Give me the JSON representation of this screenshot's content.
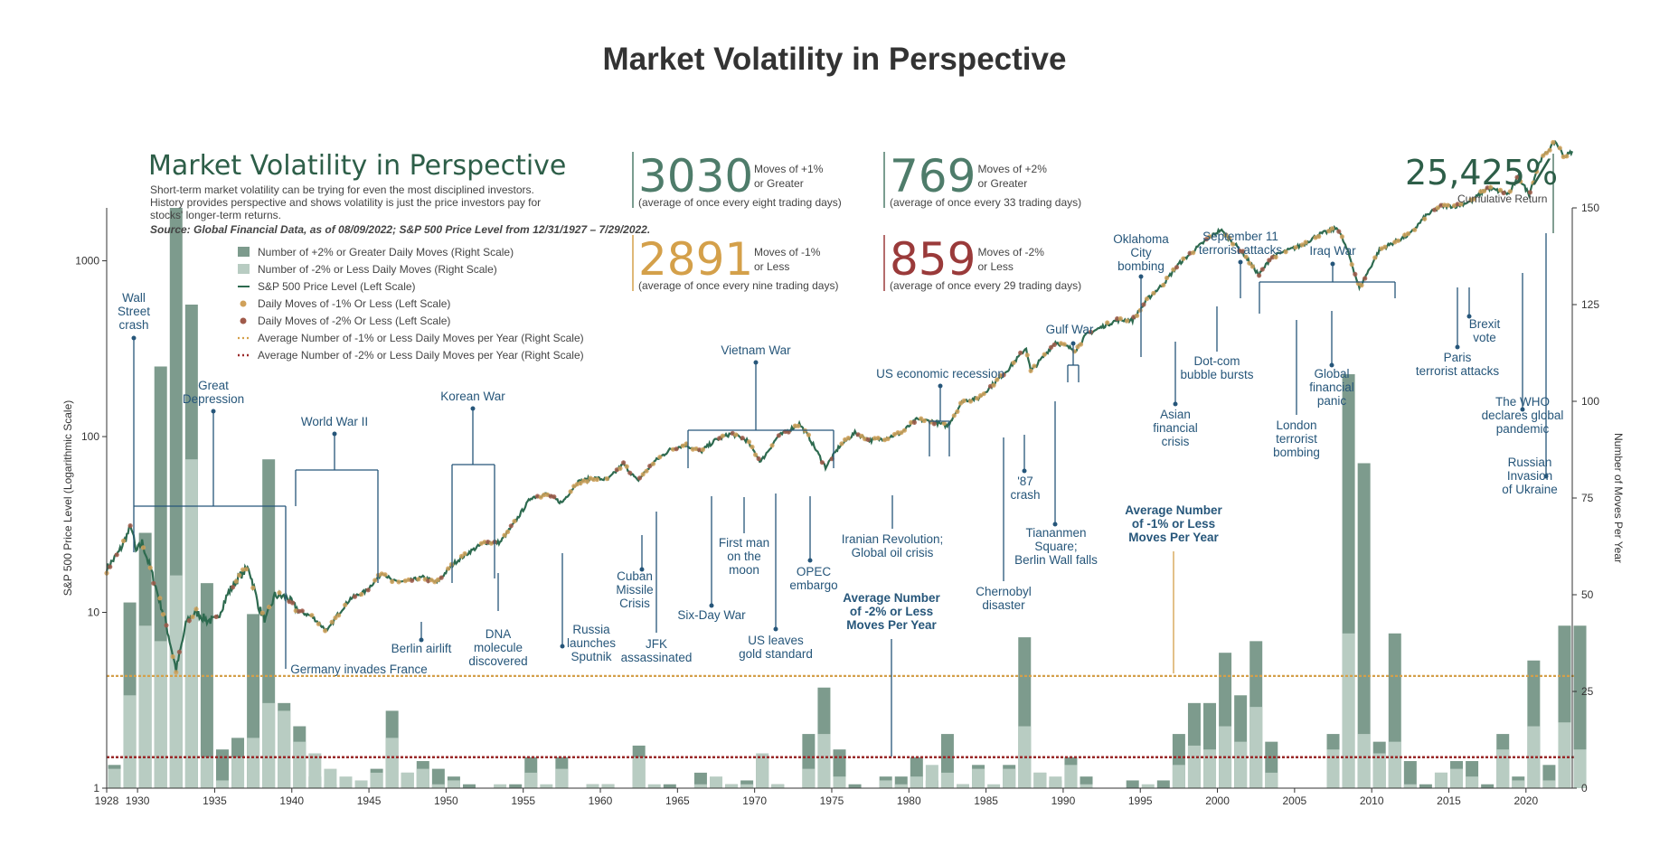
{
  "page_title": "Market Volatility in Perspective",
  "colors": {
    "bar_up": "#7d9b8d",
    "bar_down": "#b8ccc2",
    "line": "#2d6a4f",
    "dot_down1": "#d0a15a",
    "dot_down2": "#a05a4a",
    "avg1": "#d4a04a",
    "avg2": "#9a2a2a",
    "annotation": "#26567a",
    "green_num": "#4e7c6a",
    "gold_num": "#d4a04a",
    "red_num": "#9a3a3a"
  },
  "infographic": {
    "title": "Market Volatility in Perspective",
    "intro": [
      "Short-term market volatility can be trying for even the most disciplined investors.",
      "History provides perspective and shows volatility is just the price investors pay for",
      "stocks' longer-term returns."
    ],
    "source": "Source: Global Financial Data, as of 08/09/2022; S&P 500 Price Level from 12/31/1927 – 7/29/2022.",
    "stats": [
      {
        "number": "3030",
        "label1": "Moves of +1%",
        "label2": "or Greater",
        "sub": "(average of once every eight trading days)"
      },
      {
        "number": "769",
        "label1": "Moves of +2%",
        "label2": "or Greater",
        "sub": "(average of once every 33 trading days)"
      },
      {
        "number": "2891",
        "label1": "Moves of -1%",
        "label2": "or Less",
        "sub": "(average of once every nine trading days)"
      },
      {
        "number": "859",
        "label1": "Moves of -2%",
        "label2": "or Less",
        "sub": "(average of once every 29 trading days)"
      }
    ],
    "cumulative": {
      "value": "25,425%",
      "label": "Cumulative Return"
    }
  },
  "legend": [
    "Number of +2% or Greater Daily Moves (Right Scale)",
    "Number of -2% or Less Daily Moves (Right Scale)",
    "S&P 500 Price Level (Left Scale)",
    "Daily Moves of -1% Or Less (Left Scale)",
    "Daily Moves of -2% Or Less (Left Scale)",
    "Average Number of -1% or Less Daily Moves per Year (Right Scale)",
    "Average Number of -2% or Less Daily Moves per Year (Right Scale)"
  ],
  "chart_data": {
    "type": "bar+line",
    "title": "Market Volatility in Perspective",
    "ylabel_left": "S&P 500 Price Level (Logarithmic Scale)",
    "ylabel_right": "Number of Moves Per Year",
    "x_range": [
      1928,
      2023
    ],
    "ylim_left": [
      1,
      2000
    ],
    "ylim_right": [
      0,
      150
    ],
    "x_ticks": [
      1928,
      1930,
      1935,
      1940,
      1945,
      1950,
      1955,
      1960,
      1965,
      1970,
      1975,
      1980,
      1985,
      1990,
      1995,
      2000,
      2005,
      2010,
      2015,
      2020
    ],
    "left_ticks": [
      {
        "v": 1,
        "label": "1"
      },
      {
        "v": 10,
        "label": "10"
      },
      {
        "v": 100,
        "label": "100"
      },
      {
        "v": 1000,
        "label": "1000"
      }
    ],
    "right_ticks": [
      0,
      25,
      50,
      75,
      100,
      125,
      150
    ],
    "avg_down1": 29,
    "avg_down2": 8,
    "bars": {
      "years": [
        1928,
        1929,
        1930,
        1931,
        1932,
        1933,
        1934,
        1935,
        1936,
        1937,
        1938,
        1939,
        1940,
        1941,
        1942,
        1943,
        1944,
        1945,
        1946,
        1947,
        1948,
        1949,
        1950,
        1951,
        1952,
        1953,
        1954,
        1955,
        1956,
        1957,
        1958,
        1959,
        1960,
        1961,
        1962,
        1963,
        1964,
        1965,
        1966,
        1967,
        1968,
        1969,
        1970,
        1971,
        1972,
        1973,
        1974,
        1975,
        1976,
        1977,
        1978,
        1979,
        1980,
        1981,
        1982,
        1983,
        1984,
        1985,
        1986,
        1987,
        1988,
        1989,
        1990,
        1991,
        1992,
        1993,
        1994,
        1995,
        1996,
        1997,
        1998,
        1999,
        2000,
        2001,
        2002,
        2003,
        2004,
        2005,
        2006,
        2007,
        2008,
        2009,
        2010,
        2011,
        2012,
        2013,
        2014,
        2015,
        2016,
        2017,
        2018,
        2019,
        2020,
        2021,
        2022,
        2023
      ],
      "up2": [
        6,
        48,
        66,
        109,
        150,
        125,
        53,
        10,
        13,
        45,
        85,
        22,
        16,
        3,
        1,
        0,
        0,
        5,
        20,
        4,
        7,
        5,
        3,
        1,
        0,
        0,
        1,
        8,
        0,
        8,
        0,
        1,
        1,
        0,
        11,
        0,
        1,
        0,
        4,
        1,
        1,
        2,
        8,
        1,
        0,
        14,
        26,
        10,
        1,
        0,
        3,
        3,
        8,
        2,
        14,
        1,
        6,
        0,
        6,
        39,
        4,
        2,
        8,
        3,
        0,
        0,
        2,
        0,
        2,
        14,
        22,
        22,
        35,
        24,
        38,
        12,
        0,
        0,
        0,
        14,
        107,
        84,
        12,
        40,
        7,
        1,
        4,
        7,
        7,
        1,
        14,
        3,
        33,
        6,
        42,
        42
      ],
      "down2": [
        5,
        24,
        42,
        38,
        55,
        85,
        8,
        2,
        8,
        13,
        22,
        20,
        12,
        9,
        5,
        3,
        2,
        4,
        13,
        4,
        5,
        1,
        2,
        0,
        0,
        1,
        0,
        4,
        1,
        5,
        0,
        1,
        1,
        0,
        8,
        1,
        0,
        0,
        1,
        3,
        1,
        1,
        9,
        1,
        0,
        5,
        14,
        3,
        0,
        0,
        2,
        1,
        3,
        6,
        4,
        1,
        5,
        1,
        5,
        16,
        4,
        3,
        6,
        1,
        0,
        0,
        0,
        1,
        0,
        6,
        11,
        10,
        16,
        12,
        21,
        4,
        0,
        0,
        0,
        10,
        40,
        14,
        9,
        12,
        1,
        0,
        4,
        5,
        3,
        0,
        10,
        2,
        16,
        2,
        17,
        10
      ]
    },
    "price_points": [
      [
        1928.0,
        17.7
      ],
      [
        1928.8,
        22
      ],
      [
        1929.6,
        31
      ],
      [
        1929.9,
        22
      ],
      [
        1930.3,
        25
      ],
      [
        1930.9,
        17
      ],
      [
        1931.8,
        9
      ],
      [
        1932.5,
        4.7
      ],
      [
        1933.2,
        9
      ],
      [
        1933.8,
        10
      ],
      [
        1934.5,
        9
      ],
      [
        1935.1,
        9
      ],
      [
        1935.9,
        13
      ],
      [
        1936.6,
        16
      ],
      [
        1937.2,
        18
      ],
      [
        1937.9,
        10.5
      ],
      [
        1938.3,
        9
      ],
      [
        1938.9,
        12.5
      ],
      [
        1939.7,
        12.2
      ],
      [
        1940.4,
        10.2
      ],
      [
        1941.3,
        9.5
      ],
      [
        1942.3,
        7.8
      ],
      [
        1942.9,
        9.5
      ],
      [
        1943.8,
        12
      ],
      [
        1944.8,
        13.2
      ],
      [
        1945.9,
        17
      ],
      [
        1946.5,
        15
      ],
      [
        1947.5,
        15
      ],
      [
        1948.5,
        15.8
      ],
      [
        1949.4,
        14.8
      ],
      [
        1950.5,
        19
      ],
      [
        1951.5,
        22
      ],
      [
        1952.5,
        25
      ],
      [
        1953.5,
        25
      ],
      [
        1954.5,
        33
      ],
      [
        1955.5,
        45
      ],
      [
        1956.5,
        47
      ],
      [
        1957.5,
        42
      ],
      [
        1958.5,
        55
      ],
      [
        1959.5,
        58
      ],
      [
        1960.5,
        57
      ],
      [
        1961.5,
        70
      ],
      [
        1962.4,
        56
      ],
      [
        1963.5,
        72
      ],
      [
        1964.5,
        84
      ],
      [
        1965.5,
        90
      ],
      [
        1966.5,
        82
      ],
      [
        1967.5,
        96
      ],
      [
        1968.5,
        104
      ],
      [
        1969.5,
        95
      ],
      [
        1970.4,
        72
      ],
      [
        1971.5,
        100
      ],
      [
        1972.9,
        118
      ],
      [
        1973.5,
        100
      ],
      [
        1974.6,
        67
      ],
      [
        1975.5,
        88
      ],
      [
        1976.5,
        105
      ],
      [
        1977.5,
        95
      ],
      [
        1978.5,
        98
      ],
      [
        1979.5,
        105
      ],
      [
        1980.5,
        125
      ],
      [
        1981.5,
        122
      ],
      [
        1982.5,
        115
      ],
      [
        1983.5,
        160
      ],
      [
        1984.5,
        165
      ],
      [
        1985.5,
        200
      ],
      [
        1986.5,
        245
      ],
      [
        1987.6,
        320
      ],
      [
        1987.9,
        235
      ],
      [
        1988.5,
        270
      ],
      [
        1989.5,
        345
      ],
      [
        1990.8,
        310
      ],
      [
        1991.5,
        380
      ],
      [
        1992.5,
        420
      ],
      [
        1993.5,
        460
      ],
      [
        1994.5,
        460
      ],
      [
        1995.5,
        610
      ],
      [
        1996.5,
        740
      ],
      [
        1997.5,
        960
      ],
      [
        1998.5,
        1150
      ],
      [
        1999.5,
        1360
      ],
      [
        2000.2,
        1500
      ],
      [
        2001.5,
        1150
      ],
      [
        2002.7,
        830
      ],
      [
        2003.5,
        1050
      ],
      [
        2004.5,
        1140
      ],
      [
        2005.5,
        1230
      ],
      [
        2006.5,
        1400
      ],
      [
        2007.8,
        1540
      ],
      [
        2008.5,
        1100
      ],
      [
        2009.2,
        700
      ],
      [
        2010.5,
        1150
      ],
      [
        2011.5,
        1280
      ],
      [
        2012.5,
        1420
      ],
      [
        2013.5,
        1800
      ],
      [
        2014.5,
        2050
      ],
      [
        2015.5,
        2050
      ],
      [
        2016.5,
        2200
      ],
      [
        2017.5,
        2600
      ],
      [
        2018.9,
        2400
      ],
      [
        2019.5,
        3000
      ],
      [
        2020.2,
        2400
      ],
      [
        2020.9,
        3700
      ],
      [
        2021.9,
        4770
      ],
      [
        2022.5,
        3900
      ],
      [
        2023.0,
        4200
      ]
    ]
  },
  "annotations": {
    "wall_street": [
      "Wall",
      "Street",
      "crash"
    ],
    "great_depression": [
      "Great",
      "Depression"
    ],
    "wwii": [
      "World War II"
    ],
    "korean": [
      "Korean War"
    ],
    "germany": [
      "Germany invades France"
    ],
    "berlin_airlift": [
      "Berlin airlift"
    ],
    "dna": [
      "DNA",
      "molecule",
      "discovered"
    ],
    "sputnik": [
      "Russia",
      "launches",
      "Sputnik"
    ],
    "cuban": [
      "Cuban",
      "Missile",
      "Crisis"
    ],
    "jfk": [
      "JFK",
      "assassinated"
    ],
    "vietnam": [
      "Vietnam War"
    ],
    "six_day": [
      "Six-Day War"
    ],
    "first_man": [
      "First man",
      "on the",
      "moon"
    ],
    "gold": [
      "US leaves",
      "gold standard"
    ],
    "opec": [
      "OPEC",
      "embargo"
    ],
    "iranian": [
      "Iranian Revolution;",
      "Global oil crisis"
    ],
    "recession": [
      "US economic recession"
    ],
    "chernobyl": [
      "Chernobyl",
      "disaster"
    ],
    "crash87": [
      "'87",
      "crash"
    ],
    "tiananmen": [
      "Tiananmen",
      "Square;",
      "Berlin Wall falls"
    ],
    "gulf": [
      "Gulf War"
    ],
    "oklahoma": [
      "Oklahoma",
      "City",
      "bombing"
    ],
    "asian": [
      "Asian",
      "financial",
      "crisis"
    ],
    "dotcom": [
      "Dot-com",
      "bubble bursts"
    ],
    "sept11": [
      "September 11",
      "terrorist attacks"
    ],
    "iraq": [
      "Iraq War"
    ],
    "london": [
      "London",
      "terrorist",
      "bombing"
    ],
    "gfc": [
      "Global",
      "financial",
      "panic"
    ],
    "paris": [
      "Paris",
      "terrorist attacks"
    ],
    "brexit": [
      "Brexit",
      "vote"
    ],
    "who": [
      "The WHO",
      "declares global",
      "pandemic"
    ],
    "ukraine": [
      "Russian",
      "Invasion",
      "of Ukraine"
    ],
    "avg2_label": [
      "Average Number",
      "of -2% or Less",
      "Moves Per Year"
    ],
    "avg1_label": [
      "Average Number",
      "of -1% or Less",
      "Moves Per Year"
    ]
  }
}
